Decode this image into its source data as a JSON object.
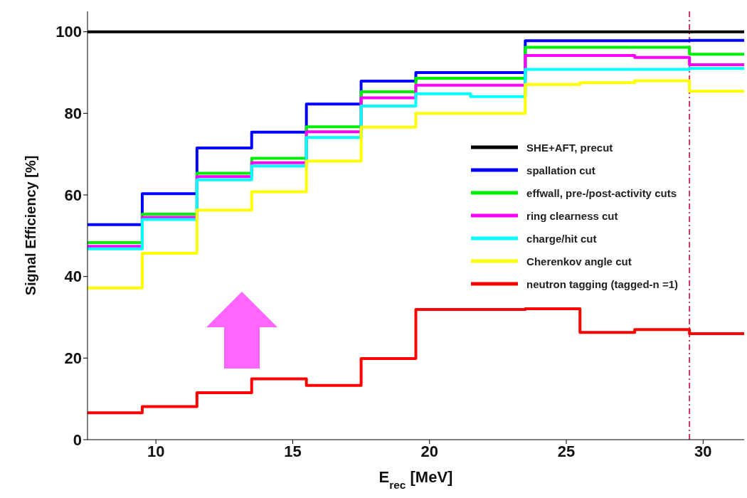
{
  "chart_data": {
    "type": "histogram",
    "xlabel": "E$_{rec}$ [MeV]",
    "ylabel": "Signal Efficiency [%]",
    "bins": [
      7.5,
      9.5,
      11.5,
      13.5,
      15.5,
      17.5,
      19.5,
      21.5,
      23.5,
      25.5,
      27.5,
      29.5,
      31.5
    ],
    "series": [
      {
        "name": "SHE+AFT, precut",
        "color": "#000000",
        "values": [
          100,
          100,
          100,
          100,
          100,
          100,
          100,
          100,
          100,
          100,
          100,
          100
        ]
      },
      {
        "name": "spallation cut",
        "color": "#0000ff",
        "values": [
          52.7,
          60.3,
          71.5,
          75.4,
          82.3,
          87.9,
          90.0,
          90.0,
          97.8,
          97.8,
          97.8,
          97.9
        ]
      },
      {
        "name": "effwall, pre-/post-activity cuts",
        "color": "#00ee00",
        "values": [
          48.3,
          55.3,
          65.3,
          69.0,
          76.7,
          85.3,
          88.6,
          88.6,
          96.2,
          96.2,
          96.2,
          94.5
        ]
      },
      {
        "name": "ring clearness cut",
        "color": "#ff00ff",
        "values": [
          47.4,
          54.5,
          64.5,
          67.9,
          75.5,
          83.8,
          86.9,
          86.9,
          94.2,
          94.2,
          93.7,
          91.9
        ]
      },
      {
        "name": "charge/hit cut",
        "color": "#00ffff",
        "values": [
          46.8,
          54.0,
          63.7,
          67.1,
          74.1,
          81.8,
          84.8,
          84.1,
          90.8,
          90.8,
          90.8,
          91.0
        ]
      },
      {
        "name": "Cherenkov angle cut",
        "color": "#ffff00",
        "values": [
          37.2,
          45.7,
          56.3,
          60.8,
          68.3,
          76.6,
          80.0,
          80.0,
          87.1,
          87.5,
          88.0,
          85.4
        ]
      },
      {
        "name": "neutron tagging (tagged-n =1)",
        "color": "#ff0000",
        "values": [
          6.6,
          8.1,
          11.5,
          14.9,
          13.3,
          19.9,
          31.9,
          31.9,
          32.1,
          26.3,
          27.0,
          26.0
        ]
      }
    ],
    "xlim": [
      7.5,
      31.5
    ],
    "xticks": [
      10,
      15,
      20,
      25,
      30
    ],
    "ylim": [
      0,
      105
    ],
    "yticks": [
      0,
      20,
      40,
      60,
      80,
      100
    ],
    "ref_lines": [
      {
        "axis": "x",
        "value": 29.5,
        "color": "#cc3366",
        "line_style": "dashed"
      }
    ],
    "legend": "right",
    "grid": false,
    "marker": "none",
    "line_style": "solid"
  }
}
